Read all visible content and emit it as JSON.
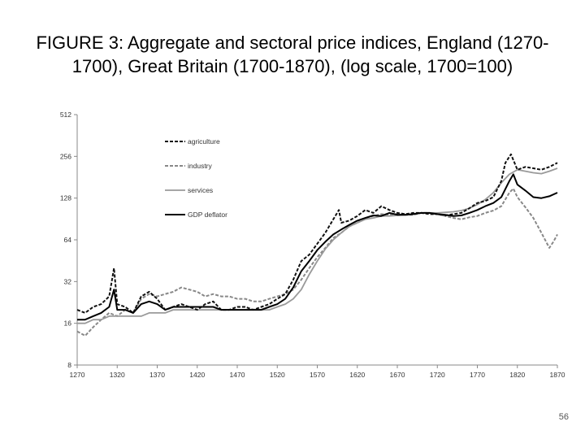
{
  "slide": {
    "title": "FIGURE 3: Aggregate and sectoral price indices, England (1270-1700), Great Britain (1700-1870), (log scale, 1700=100)",
    "page_number": "56"
  },
  "chart_data": {
    "type": "line",
    "title": "FIGURE 3: Aggregate and sectoral price indices, England (1270-1700), Great Britain (1700-1870), (log scale, 1700=100)",
    "xlabel": "",
    "ylabel": "",
    "y_scale": "log2",
    "ylim": [
      8,
      512
    ],
    "xlim": [
      1270,
      1870
    ],
    "x_ticks": [
      "1270",
      "1320",
      "1370",
      "1420",
      "1470",
      "1520",
      "1570",
      "1620",
      "1670",
      "1720",
      "1770",
      "1820",
      "1870"
    ],
    "y_ticks": [
      "8",
      "16",
      "32",
      "64",
      "128",
      "256",
      "512"
    ],
    "y_tick_values": [
      8,
      16,
      32,
      64,
      128,
      256,
      512
    ],
    "grid": false,
    "legend_position": "upper-left inside plot",
    "series": [
      {
        "name": "agriculture",
        "style": "dashed",
        "color": "#111111",
        "x": [
          1270,
          1280,
          1290,
          1300,
          1310,
          1316,
          1320,
          1330,
          1340,
          1350,
          1360,
          1370,
          1380,
          1390,
          1400,
          1410,
          1420,
          1430,
          1440,
          1450,
          1460,
          1470,
          1480,
          1490,
          1500,
          1510,
          1520,
          1530,
          1540,
          1550,
          1560,
          1570,
          1580,
          1590,
          1597,
          1600,
          1610,
          1620,
          1630,
          1640,
          1650,
          1660,
          1670,
          1680,
          1690,
          1700,
          1710,
          1720,
          1730,
          1740,
          1750,
          1760,
          1770,
          1780,
          1790,
          1800,
          1805,
          1812,
          1820,
          1830,
          1840,
          1850,
          1860,
          1870
        ],
        "values": [
          20,
          19,
          21,
          22,
          25,
          40,
          22,
          21,
          19,
          25,
          27,
          24,
          20,
          21,
          22,
          21,
          20,
          22,
          23,
          20,
          20,
          21,
          21,
          20,
          21,
          22,
          24,
          26,
          33,
          45,
          50,
          60,
          72,
          90,
          105,
          85,
          88,
          95,
          105,
          100,
          112,
          105,
          100,
          98,
          100,
          100,
          98,
          98,
          96,
          98,
          100,
          108,
          118,
          122,
          130,
          170,
          230,
          265,
          205,
          215,
          210,
          205,
          215,
          230
        ]
      },
      {
        "name": "industry",
        "style": "dashed",
        "color": "#888888",
        "x": [
          1270,
          1280,
          1290,
          1300,
          1310,
          1320,
          1330,
          1340,
          1350,
          1360,
          1370,
          1380,
          1390,
          1400,
          1410,
          1420,
          1430,
          1440,
          1450,
          1460,
          1470,
          1480,
          1490,
          1500,
          1510,
          1520,
          1530,
          1540,
          1550,
          1560,
          1570,
          1580,
          1590,
          1600,
          1610,
          1620,
          1630,
          1640,
          1650,
          1660,
          1670,
          1680,
          1690,
          1700,
          1710,
          1720,
          1730,
          1740,
          1750,
          1760,
          1770,
          1780,
          1790,
          1800,
          1810,
          1815,
          1820,
          1830,
          1840,
          1850,
          1860,
          1865,
          1870
        ],
        "values": [
          14,
          13,
          15,
          17,
          19,
          18,
          20,
          19,
          24,
          26,
          25,
          26,
          27,
          29,
          28,
          27,
          25,
          26,
          25,
          25,
          24,
          24,
          23,
          23,
          24,
          25,
          26,
          28,
          33,
          40,
          48,
          56,
          66,
          72,
          80,
          85,
          92,
          95,
          98,
          97,
          98,
          97,
          97,
          100,
          100,
          98,
          95,
          92,
          90,
          93,
          95,
          100,
          104,
          112,
          140,
          150,
          130,
          110,
          92,
          72,
          56,
          62,
          70
        ]
      },
      {
        "name": "services",
        "style": "solid",
        "color": "#9a9a9a",
        "x": [
          1270,
          1280,
          1290,
          1300,
          1310,
          1320,
          1330,
          1340,
          1350,
          1360,
          1370,
          1380,
          1390,
          1400,
          1410,
          1420,
          1430,
          1440,
          1450,
          1460,
          1470,
          1480,
          1490,
          1500,
          1510,
          1520,
          1530,
          1540,
          1550,
          1560,
          1570,
          1580,
          1590,
          1600,
          1610,
          1620,
          1630,
          1640,
          1650,
          1660,
          1670,
          1680,
          1690,
          1700,
          1710,
          1720,
          1730,
          1740,
          1750,
          1760,
          1770,
          1780,
          1790,
          1800,
          1810,
          1820,
          1830,
          1840,
          1850,
          1860,
          1870
        ],
        "values": [
          16,
          16,
          17,
          17,
          18,
          18,
          18,
          18,
          18,
          19,
          19,
          19,
          20,
          20,
          20,
          20,
          20,
          20,
          20,
          20,
          20,
          20,
          20,
          20,
          20,
          21,
          22,
          24,
          28,
          36,
          45,
          55,
          64,
          72,
          80,
          85,
          90,
          92,
          95,
          95,
          96,
          97,
          98,
          100,
          100,
          100,
          101,
          102,
          104,
          108,
          115,
          125,
          140,
          165,
          190,
          205,
          200,
          195,
          192,
          200,
          210
        ]
      },
      {
        "name": "GDP deflator",
        "style": "solid-thick",
        "color": "#000000",
        "x": [
          1270,
          1280,
          1290,
          1300,
          1310,
          1316,
          1320,
          1330,
          1340,
          1350,
          1360,
          1370,
          1380,
          1390,
          1400,
          1410,
          1420,
          1430,
          1440,
          1450,
          1460,
          1470,
          1480,
          1490,
          1500,
          1510,
          1520,
          1530,
          1540,
          1550,
          1560,
          1570,
          1580,
          1590,
          1600,
          1610,
          1620,
          1630,
          1640,
          1650,
          1660,
          1670,
          1680,
          1690,
          1700,
          1710,
          1720,
          1730,
          1740,
          1750,
          1760,
          1770,
          1780,
          1790,
          1800,
          1810,
          1815,
          1820,
          1830,
          1840,
          1850,
          1860,
          1870
        ],
        "values": [
          17,
          17,
          18,
          19,
          21,
          28,
          20,
          20,
          19,
          22,
          23,
          22,
          20,
          21,
          21,
          21,
          21,
          21,
          21,
          20,
          20,
          20,
          20,
          20,
          20,
          21,
          22,
          24,
          29,
          38,
          45,
          54,
          62,
          70,
          76,
          82,
          88,
          92,
          96,
          95,
          100,
          97,
          97,
          98,
          100,
          100,
          98,
          97,
          95,
          96,
          100,
          105,
          112,
          118,
          130,
          170,
          190,
          160,
          145,
          130,
          128,
          132,
          140
        ]
      }
    ]
  }
}
